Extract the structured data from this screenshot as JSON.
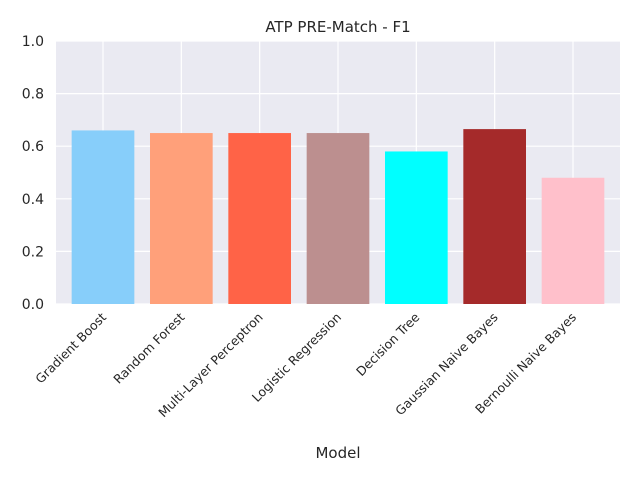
{
  "chart_data": {
    "type": "bar",
    "title": "ATP PRE-Match - F1",
    "xlabel": "Model",
    "ylabel": "",
    "ylim": [
      0,
      1.0
    ],
    "yticks": [
      "0.0",
      "0.2",
      "0.4",
      "0.6",
      "0.8",
      "1.0"
    ],
    "grid": true,
    "categories": [
      "Gradient Boost",
      "Random Forest",
      "Multi-Layer Perceptron",
      "Logistic Regression",
      "Decision Tree",
      "Gaussian Naive Bayes",
      "Bernoulli Naive Bayes"
    ],
    "values": [
      0.66,
      0.65,
      0.65,
      0.65,
      0.58,
      0.665,
      0.48
    ],
    "colors": [
      "#87cefa",
      "#ffa07a",
      "#ff6347",
      "#bc8f8f",
      "#00ffff",
      "#a52a2a",
      "#ffc0cb"
    ],
    "plot_background": "#eaeaf2",
    "grid_color": "#ffffff"
  }
}
